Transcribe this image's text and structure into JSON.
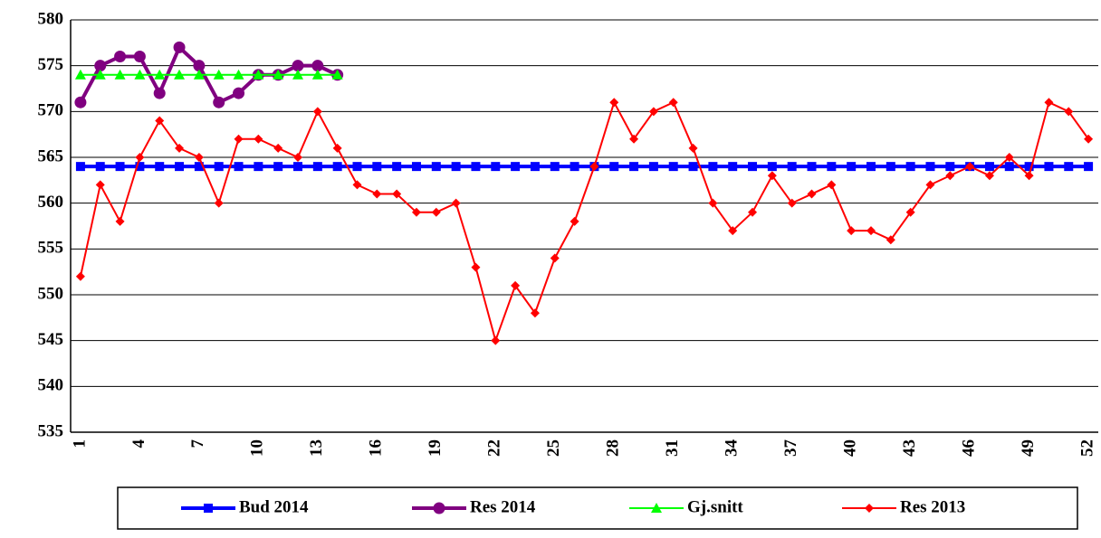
{
  "chart_data": {
    "type": "line",
    "categories": [
      1,
      null,
      null,
      4,
      null,
      null,
      7,
      null,
      null,
      10,
      null,
      null,
      13,
      null,
      null,
      16,
      null,
      null,
      19,
      null,
      null,
      22,
      null,
      null,
      25,
      null,
      null,
      28,
      null,
      null,
      31,
      null,
      null,
      34,
      null,
      null,
      37,
      null,
      null,
      40,
      null,
      null,
      43,
      null,
      null,
      46,
      null,
      null,
      49,
      null,
      null,
      52
    ],
    "ylim": [
      535,
      580
    ],
    "yticks": [
      535,
      540,
      545,
      550,
      555,
      560,
      565,
      570,
      575,
      580
    ],
    "grid": true,
    "legend": "bottom",
    "series": [
      {
        "name": "Bud 2014",
        "color": "#0000ff",
        "marker": "square",
        "values": [
          564,
          564,
          564,
          564,
          564,
          564,
          564,
          564,
          564,
          564,
          564,
          564,
          564,
          564,
          564,
          564,
          564,
          564,
          564,
          564,
          564,
          564,
          564,
          564,
          564,
          564,
          564,
          564,
          564,
          564,
          564,
          564,
          564,
          564,
          564,
          564,
          564,
          564,
          564,
          564,
          564,
          564,
          564,
          564,
          564,
          564,
          564,
          564,
          564,
          564,
          564,
          564
        ]
      },
      {
        "name": "Res 2014",
        "color": "#800080",
        "marker": "circle",
        "values": [
          571,
          575,
          576,
          576,
          572,
          577,
          575,
          571,
          572,
          574,
          574,
          575,
          575,
          574,
          null,
          null,
          null,
          null,
          null,
          null,
          null,
          null,
          null,
          null,
          null,
          null,
          null,
          null,
          null,
          null,
          null,
          null,
          null,
          null,
          null,
          null,
          null,
          null,
          null,
          null,
          null,
          null,
          null,
          null,
          null,
          null,
          null,
          null,
          null,
          null,
          null,
          null
        ]
      },
      {
        "name": "Gj.snitt",
        "color": "#00ff00",
        "marker": "triangle",
        "values": [
          574,
          574,
          574,
          574,
          574,
          574,
          574,
          574,
          574,
          574,
          574,
          574,
          574,
          574,
          null,
          null,
          null,
          null,
          null,
          null,
          null,
          null,
          null,
          null,
          null,
          null,
          null,
          null,
          null,
          null,
          null,
          null,
          null,
          null,
          null,
          null,
          null,
          null,
          null,
          null,
          null,
          null,
          null,
          null,
          null,
          null,
          null,
          null,
          null,
          null,
          null,
          null
        ]
      },
      {
        "name": "Res 2013",
        "color": "#ff0000",
        "marker": "diamond",
        "values": [
          552,
          562,
          558,
          565,
          569,
          566,
          565,
          560,
          567,
          567,
          566,
          565,
          570,
          566,
          562,
          561,
          561,
          559,
          559,
          560,
          553,
          545,
          551,
          548,
          554,
          558,
          564,
          571,
          567,
          570,
          571,
          566,
          560,
          557,
          559,
          563,
          560,
          561,
          562,
          557,
          557,
          556,
          559,
          562,
          563,
          564,
          563,
          565,
          563,
          571,
          570,
          567
        ]
      }
    ]
  }
}
